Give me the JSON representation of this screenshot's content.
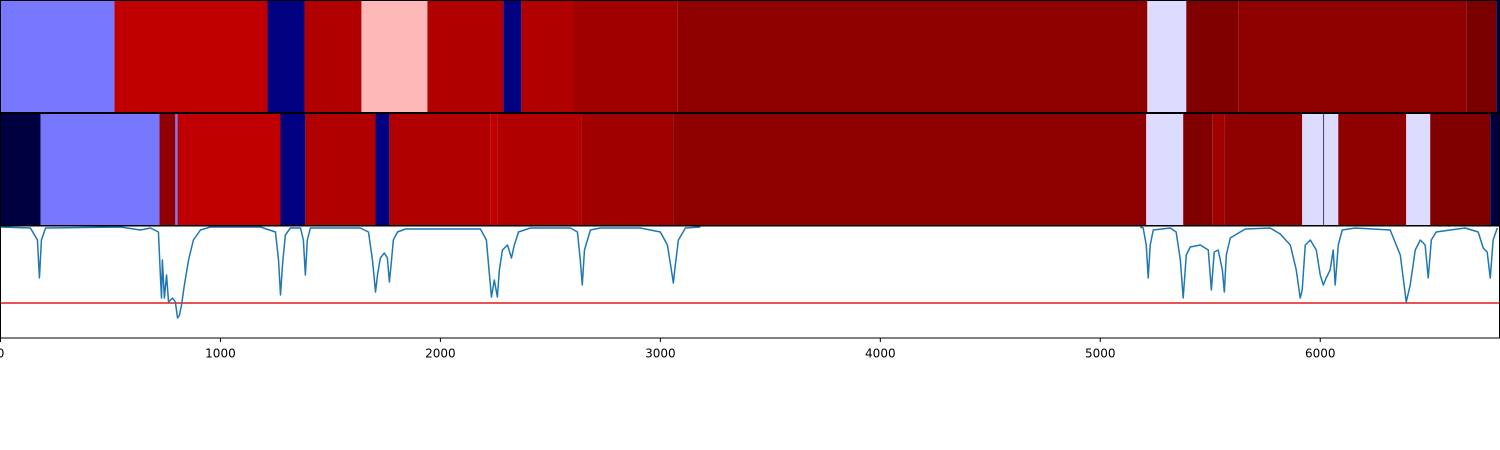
{
  "chart_data": [
    {
      "type": "segments",
      "xlim": [
        0,
        6815
      ],
      "bins": [
        0,
        518,
        1214,
        1382,
        1641,
        1941,
        2286,
        2368,
        2605,
        3077,
        5214,
        5391,
        5627,
        6664,
        6800,
        6815
      ],
      "colors": [
        "#7878ff",
        "#c00000",
        "#000080",
        "#b00000",
        "#ffb8b8",
        "#b00000",
        "#000080",
        "#b00000",
        "#a00000",
        "#8f0000",
        "#dcdcff",
        "#800000",
        "#8f0000",
        "#7a0000",
        "#000050"
      ]
    },
    {
      "type": "segments",
      "xlim": [
        0,
        6815
      ],
      "bins": [
        0,
        182,
        723,
        795,
        805,
        1273,
        1386,
        1705,
        1768,
        2227,
        2259,
        2641,
        3059,
        5209,
        5377,
        5509,
        5564,
        5918,
        6014,
        6018,
        6082,
        6391,
        6500,
        6773,
        6815
      ],
      "colors": [
        "#000040",
        "#7878ff",
        "#900000",
        "#7878ff",
        "#c00000",
        "#000080",
        "#b00000",
        "#000080",
        "#b00000",
        "#c00000",
        "#b00000",
        "#a00000",
        "#8f0000",
        "#dcdcff",
        "#800000",
        "#a00000",
        "#8f0000",
        "#dcdcff",
        "#000040",
        "#dcdcff",
        "#8f0000",
        "#dcdcff",
        "#800000",
        "#000040"
      ]
    },
    {
      "type": "line",
      "xlim": [
        0,
        6815
      ],
      "ylim": [
        0,
        1.12
      ],
      "xticks": [
        0,
        1000,
        2000,
        3000,
        4000,
        5000,
        6000
      ],
      "threshold": 0.35,
      "threshold_color": "#e41a1c",
      "series": [
        {
          "color": "#1f77b4",
          "x": [
            0,
            136,
            168,
            177,
            186,
            205,
            545,
            636,
            682,
            718,
            727,
            732,
            736,
            745,
            755,
            764,
            782,
            795,
            805,
            814,
            823,
            836,
            855,
            877,
            909,
            955,
            1182,
            1250,
            1264,
            1273,
            1282,
            1295,
            1318,
            1364,
            1377,
            1386,
            1395,
            1409,
            1636,
            1673,
            1691,
            1705,
            1714,
            1727,
            1745,
            1759,
            1768,
            1777,
            1786,
            1805,
            1841,
            2182,
            2209,
            2223,
            2232,
            2245,
            2259,
            2268,
            2282,
            2305,
            2323,
            2336,
            2355,
            2409,
            2591,
            2623,
            2636,
            2645,
            2655,
            2682,
            2727,
            2909,
            3000,
            3032,
            3050,
            3059,
            3068,
            3082,
            3114,
            3182,
            3500,
            5182,
            5195,
            5209,
            5218,
            5227,
            5241,
            5318,
            5345,
            5364,
            5377,
            5391,
            5409,
            5455,
            5491,
            5505,
            5518,
            5536,
            5555,
            5564,
            5573,
            5591,
            5659,
            5773,
            5818,
            5864,
            5891,
            5909,
            5918,
            5932,
            5955,
            5982,
            6000,
            6014,
            6027,
            6045,
            6059,
            6068,
            6082,
            6100,
            6159,
            6318,
            6364,
            6391,
            6409,
            6432,
            6455,
            6477,
            6491,
            6505,
            6527,
            6591,
            6659,
            6718,
            6741,
            6759,
            6773,
            6786,
            6805
          ],
          "values": [
            1.11,
            1.1,
            0.98,
            0.6,
            0.98,
            1.1,
            1.11,
            1.08,
            1.1,
            1.06,
            0.62,
            0.4,
            0.78,
            0.4,
            0.63,
            0.36,
            0.4,
            0.36,
            0.2,
            0.23,
            0.33,
            0.53,
            0.78,
            0.98,
            1.08,
            1.11,
            1.11,
            1.06,
            0.78,
            0.43,
            0.73,
            1.03,
            1.1,
            1.1,
            0.98,
            0.63,
            0.98,
            1.1,
            1.1,
            1.06,
            0.78,
            0.46,
            0.63,
            0.8,
            0.85,
            0.8,
            0.56,
            0.76,
            0.98,
            1.06,
            1.09,
            1.09,
            0.98,
            0.63,
            0.41,
            0.58,
            0.41,
            0.68,
            0.88,
            0.93,
            0.8,
            0.93,
            1.06,
            1.1,
            1.1,
            1.06,
            0.78,
            0.53,
            0.88,
            1.08,
            1.1,
            1.1,
            1.06,
            0.93,
            0.68,
            0.55,
            0.73,
            0.98,
            1.1,
            1.11,
            null,
            1.11,
            1.1,
            0.93,
            0.6,
            0.93,
            1.08,
            1.1,
            1.06,
            0.78,
            0.4,
            0.83,
            0.91,
            0.93,
            0.88,
            0.48,
            0.86,
            0.88,
            0.68,
            0.46,
            0.83,
            1.0,
            1.09,
            1.1,
            1.04,
            0.93,
            0.68,
            0.4,
            0.48,
            0.93,
            0.98,
            0.88,
            0.63,
            0.53,
            0.6,
            0.68,
            0.88,
            0.53,
            0.93,
            1.08,
            1.1,
            1.08,
            0.83,
            0.36,
            0.53,
            0.88,
            0.98,
            0.93,
            0.6,
            0.98,
            1.06,
            1.08,
            1.1,
            1.06,
            0.9,
            0.86,
            0.6,
            0.98,
            1.1
          ]
        }
      ]
    }
  ]
}
